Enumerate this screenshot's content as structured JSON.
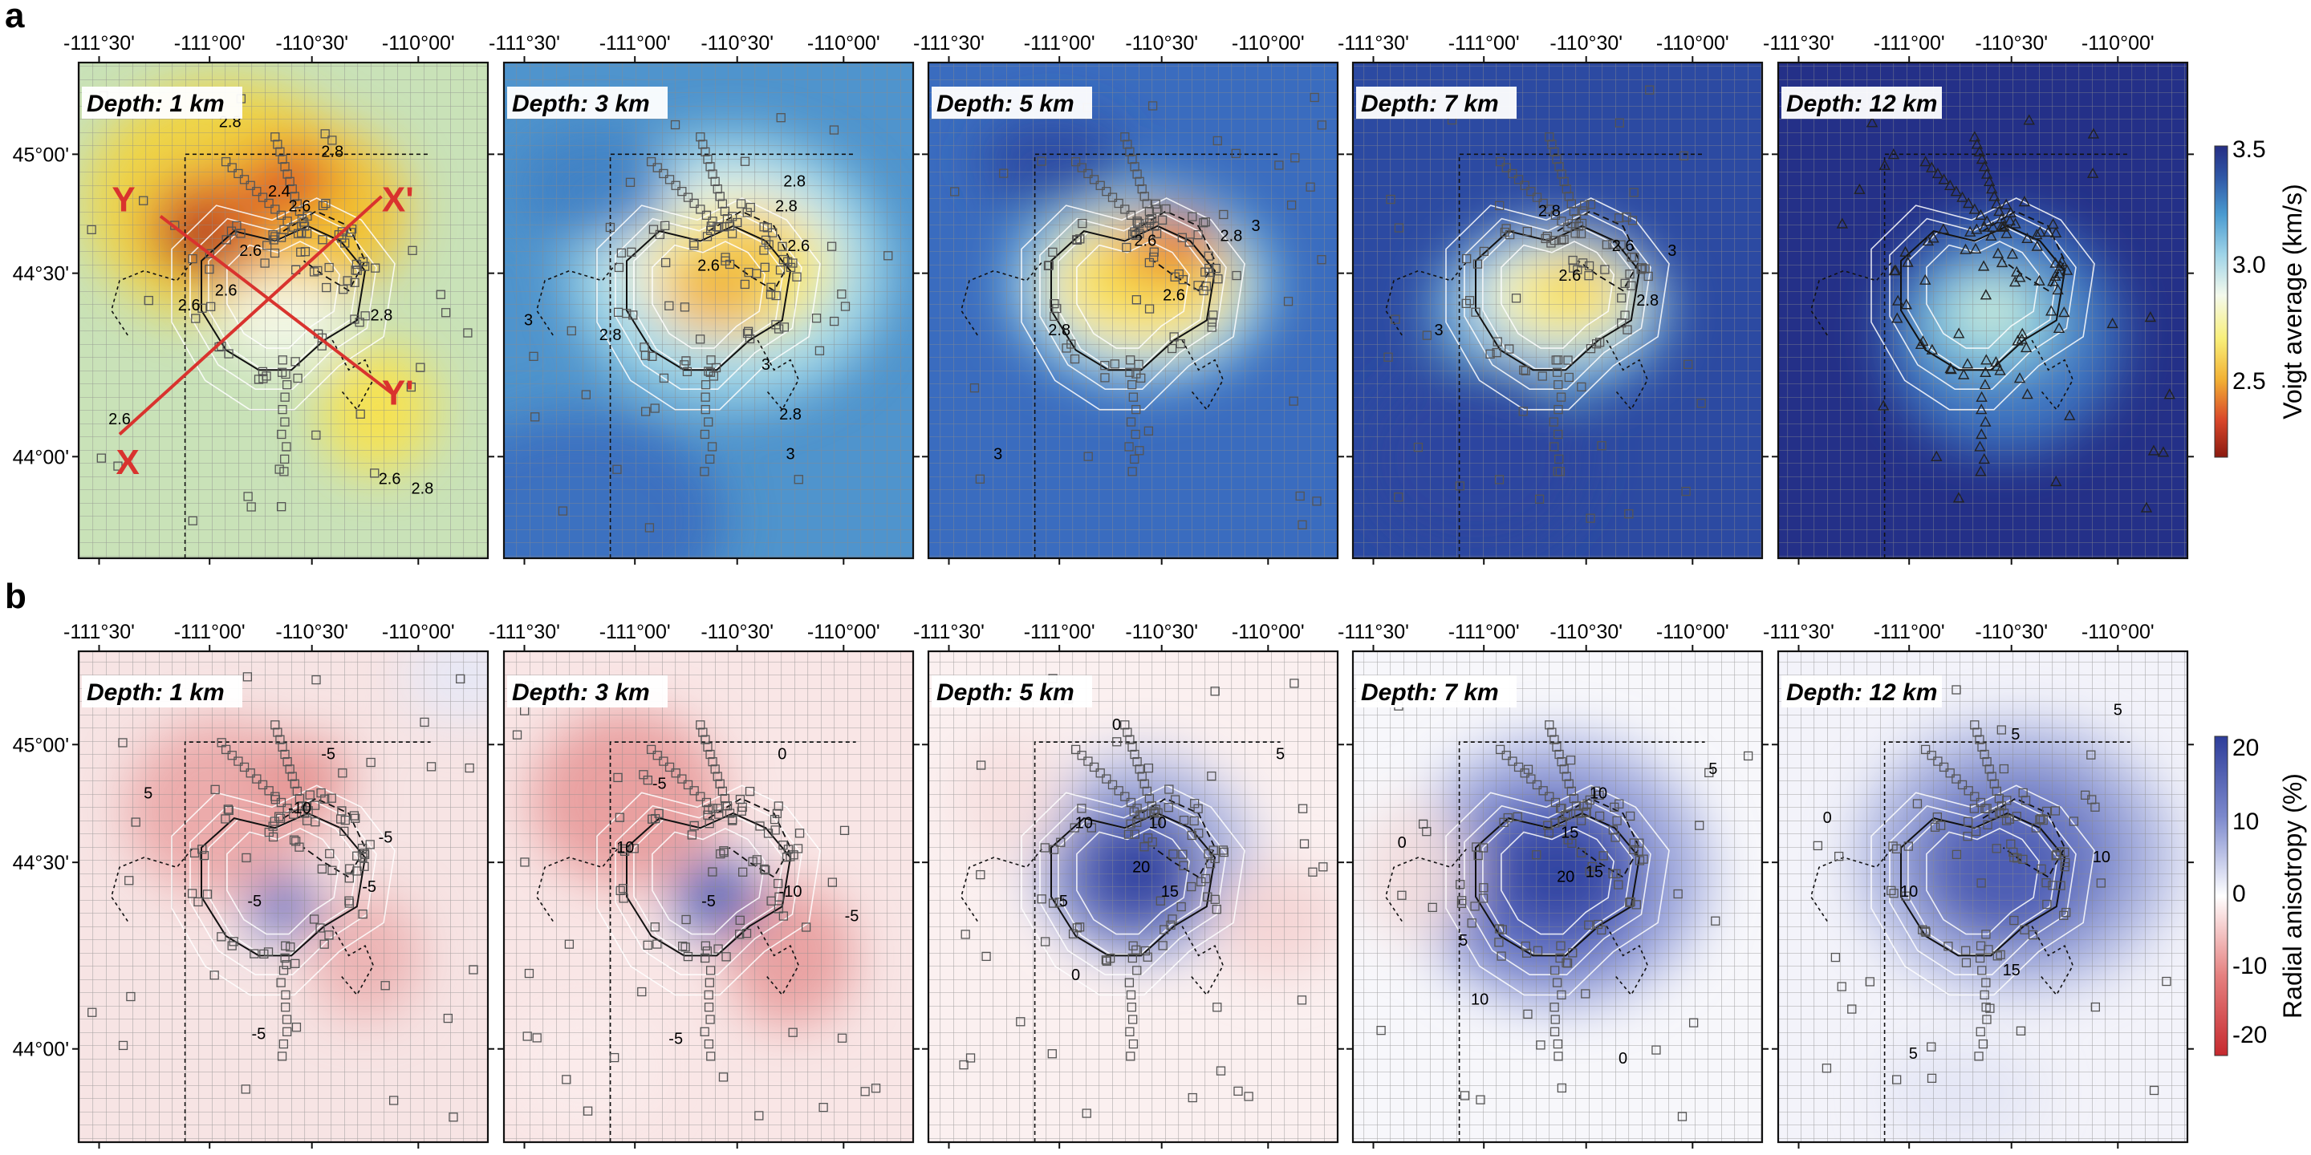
{
  "figure": {
    "row_a_label": "a",
    "row_b_label": "b",
    "lon_ticks": [
      "-111°30'",
      "-111°00'",
      "-110°30'",
      "-110°00'"
    ],
    "lat_ticks": [
      "45°00'",
      "44°30'",
      "44°00'"
    ],
    "depths": [
      "Depth: 1 km",
      "Depth: 3 km",
      "Depth: 5 km",
      "Depth: 7 km",
      "Depth: 12 km"
    ]
  },
  "row_a": {
    "colorbar_label": "Voigt average (km/s)",
    "colorbar_ticks": [
      "3.5",
      "3.0",
      "2.5"
    ],
    "colorbar_range": [
      2.2,
      3.5
    ],
    "colors": [
      "#8b1a10",
      "#d9472a",
      "#f2b134",
      "#f8ef7a",
      "#f4f9ec",
      "#9fd4e8",
      "#4a9bd0",
      "#2f57a6",
      "#252e84"
    ],
    "panel_bg": [
      "#c9e2b8",
      "#4f94cd",
      "#3a6cbf",
      "#2c4aa2",
      "#243088"
    ],
    "profile_labels": [
      "Y",
      "X'",
      "X",
      "Y'"
    ],
    "contour_labels": [
      [
        "2.8",
        "2.8",
        "2.4",
        "2.6",
        "2.6",
        "2.6",
        "2.8",
        "2.6",
        "2.6",
        "2.6",
        "2.8"
      ],
      [
        "2.8",
        "2.8",
        "2.6",
        "2.6",
        "3",
        "2.8",
        "3",
        "2.8",
        "3"
      ],
      [
        "3",
        "2.6",
        "2.6",
        "2.8",
        "2.8",
        "3"
      ],
      [
        "2.8",
        "2.6",
        "2.6",
        "2.8",
        "3",
        "3"
      ],
      []
    ]
  },
  "row_b": {
    "colorbar_label": "Radial anisotropy (%)",
    "colorbar_ticks": [
      "20",
      "10",
      "0",
      "-10",
      "-20"
    ],
    "colorbar_range": [
      -22,
      22
    ],
    "colors": [
      "#c6292e",
      "#e5807f",
      "#f7d6d6",
      "#ffffff",
      "#d5d9f0",
      "#7b88cc",
      "#2d3d9a"
    ],
    "contour_labels": [
      [
        "5",
        "-5",
        "-10",
        "-5",
        "-5",
        "-5",
        "-5"
      ],
      [
        "-5",
        "-10",
        "0",
        "-10",
        "-5",
        "-5",
        "-5"
      ],
      [
        "0",
        "10",
        "10",
        "15",
        "20",
        "0",
        "5",
        "5"
      ],
      [
        "10",
        "15",
        "20",
        "15",
        "5",
        "10",
        "0",
        "5",
        "0"
      ],
      [
        "5",
        "0",
        "10",
        "10",
        "15",
        "5",
        "5"
      ]
    ]
  }
}
